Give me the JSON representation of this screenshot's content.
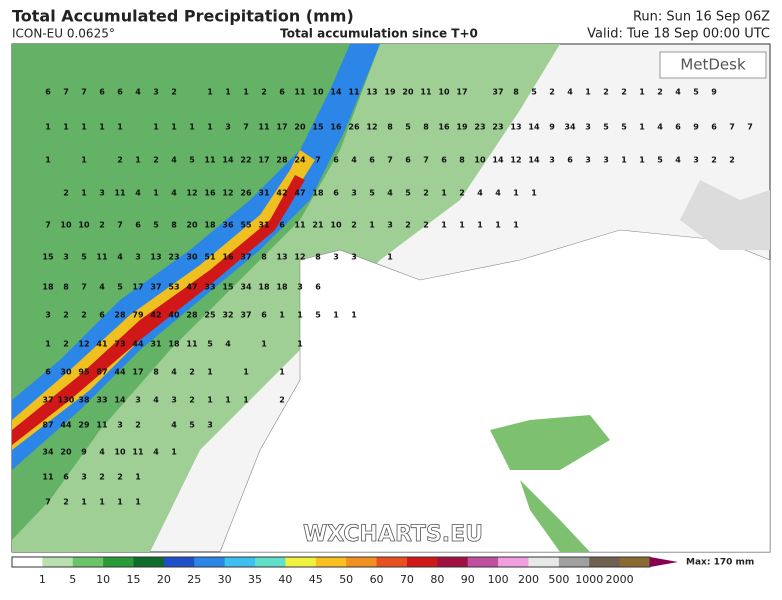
{
  "header": {
    "title": "Total Accumulated Precipitation (mm)",
    "model": "ICON-EU 0.0625°",
    "subtitle": "Total accumulation since T+0",
    "run": "Run: Sun 16 Sep 06Z",
    "valid": "Valid: Tue 18 Sep 00:00 UTC"
  },
  "logo": "MetDesk",
  "watermark": "WXCHARTS.EU",
  "grid_values": [
    [
      6,
      7,
      7,
      6,
      6,
      4,
      3,
      2,
      null,
      1,
      1,
      1,
      2,
      6,
      11,
      10,
      14,
      11,
      13,
      19,
      20,
      11,
      10,
      17,
      null,
      37,
      8,
      5,
      2,
      4,
      1,
      2,
      2,
      1,
      2,
      4,
      5,
      9,
      null,
      null
    ],
    [
      1,
      1,
      1,
      1,
      1,
      null,
      1,
      1,
      1,
      1,
      3,
      7,
      11,
      17,
      20,
      15,
      16,
      26,
      12,
      8,
      5,
      8,
      16,
      19,
      23,
      23,
      13,
      14,
      9,
      34,
      3,
      5,
      5,
      1,
      4,
      6,
      9,
      6,
      7,
      7
    ],
    [
      1,
      null,
      1,
      null,
      2,
      1,
      2,
      4,
      5,
      11,
      14,
      22,
      17,
      28,
      24,
      7,
      6,
      4,
      6,
      7,
      6,
      7,
      6,
      8,
      10,
      14,
      12,
      14,
      3,
      6,
      3,
      3,
      1,
      1,
      5,
      4,
      3,
      2,
      2,
      null
    ],
    [
      null,
      2,
      1,
      3,
      11,
      4,
      1,
      4,
      12,
      16,
      12,
      26,
      31,
      42,
      47,
      18,
      6,
      3,
      5,
      4,
      5,
      2,
      1,
      2,
      4,
      4,
      1,
      1,
      null,
      null,
      null,
      null,
      null,
      null,
      null,
      null,
      null,
      null,
      null,
      null
    ],
    [
      7,
      10,
      10,
      2,
      7,
      6,
      5,
      8,
      20,
      18,
      36,
      55,
      31,
      6,
      11,
      21,
      10,
      2,
      1,
      3,
      2,
      2,
      1,
      1,
      1,
      1,
      1,
      null,
      null,
      null,
      null,
      null,
      null,
      null,
      null,
      null,
      null,
      null,
      null,
      null
    ],
    [
      15,
      3,
      5,
      11,
      4,
      3,
      13,
      23,
      30,
      51,
      16,
      37,
      8,
      13,
      12,
      8,
      3,
      3,
      null,
      1,
      null,
      null,
      null,
      null,
      null,
      null,
      null,
      null,
      null,
      null,
      null,
      null,
      null,
      null,
      null,
      null,
      null,
      null,
      null,
      null
    ],
    [
      18,
      8,
      7,
      4,
      5,
      17,
      37,
      53,
      47,
      33,
      15,
      34,
      18,
      18,
      3,
      6,
      null,
      null,
      null,
      null,
      null,
      null,
      null,
      null,
      null,
      null,
      null,
      null,
      null,
      null,
      null,
      null,
      null,
      null,
      null,
      null,
      null,
      null,
      null,
      null
    ],
    [
      3,
      2,
      2,
      6,
      28,
      79,
      42,
      40,
      28,
      25,
      32,
      37,
      6,
      1,
      1,
      5,
      1,
      1,
      null,
      null,
      null,
      null,
      null,
      null,
      null,
      null,
      null,
      null,
      null,
      null,
      null,
      null,
      null,
      null,
      null,
      null,
      null,
      null,
      null,
      null
    ],
    [
      1,
      2,
      12,
      41,
      73,
      44,
      31,
      18,
      11,
      5,
      4,
      null,
      1,
      null,
      1,
      null,
      null,
      null,
      null,
      null,
      null,
      null,
      null,
      null,
      null,
      null,
      null,
      null,
      null,
      null,
      null,
      null,
      null,
      null,
      null,
      null,
      null,
      null,
      null,
      null
    ],
    [
      6,
      30,
      95,
      87,
      44,
      17,
      8,
      4,
      2,
      1,
      null,
      1,
      null,
      1,
      null,
      null,
      null,
      null,
      null,
      null,
      null,
      null,
      null,
      null,
      null,
      null,
      null,
      null,
      null,
      null,
      null,
      null,
      null,
      null,
      null,
      null,
      null,
      null,
      null,
      null
    ],
    [
      37,
      130,
      38,
      33,
      14,
      3,
      4,
      3,
      2,
      1,
      1,
      1,
      null,
      2,
      null,
      null,
      null,
      null,
      null,
      null,
      null,
      null,
      null,
      null,
      null,
      null,
      null,
      null,
      null,
      null,
      null,
      null,
      null,
      null,
      null,
      null,
      null,
      null,
      null,
      null
    ],
    [
      87,
      44,
      29,
      11,
      3,
      2,
      null,
      4,
      5,
      3,
      null,
      null,
      null,
      null,
      null,
      null,
      null,
      null,
      null,
      null,
      null,
      null,
      null,
      null,
      null,
      null,
      null,
      null,
      null,
      null,
      null,
      null,
      null,
      null,
      null,
      null,
      null,
      null,
      null,
      null
    ],
    [
      34,
      20,
      9,
      4,
      10,
      11,
      4,
      1,
      null,
      null,
      null,
      null,
      null,
      null,
      null,
      null,
      null,
      null,
      null,
      null,
      null,
      null,
      null,
      null,
      null,
      null,
      null,
      null,
      null,
      null,
      null,
      null,
      null,
      null,
      null,
      null,
      null,
      null,
      null,
      null
    ],
    [
      11,
      6,
      3,
      2,
      2,
      1,
      null,
      null,
      null,
      null,
      null,
      null,
      null,
      null,
      null,
      null,
      null,
      null,
      null,
      null,
      null,
      null,
      null,
      null,
      null,
      null,
      null,
      null,
      null,
      null,
      null,
      null,
      null,
      null,
      null,
      null,
      null,
      null,
      null,
      null
    ],
    [
      7,
      2,
      1,
      1,
      1,
      1,
      null,
      null,
      null,
      null,
      null,
      null,
      null,
      null,
      null,
      null,
      null,
      null,
      null,
      null,
      null,
      null,
      null,
      null,
      null,
      null,
      null,
      null,
      null,
      null,
      null,
      null,
      null,
      null,
      null,
      null,
      null,
      null,
      null,
      null
    ]
  ],
  "colorbar": {
    "labels": [
      1,
      5,
      10,
      15,
      20,
      25,
      30,
      35,
      40,
      45,
      50,
      60,
      70,
      80,
      90,
      100,
      200,
      500,
      1000,
      2000
    ],
    "colors": [
      "#ffffff",
      "#b9e0b0",
      "#6cc46a",
      "#2a9a3a",
      "#106c2a",
      "#1f4fc8",
      "#2c86e8",
      "#3cc0f0",
      "#60e0c8",
      "#f0f040",
      "#f8c020",
      "#f09020",
      "#e85020",
      "#d01818",
      "#a01040",
      "#c050a0",
      "#f0a0e0",
      "#e8e8e8",
      "#a0a0a0",
      "#706050",
      "#8a6a30"
    ],
    "max_label": "Max: 170 mm"
  }
}
